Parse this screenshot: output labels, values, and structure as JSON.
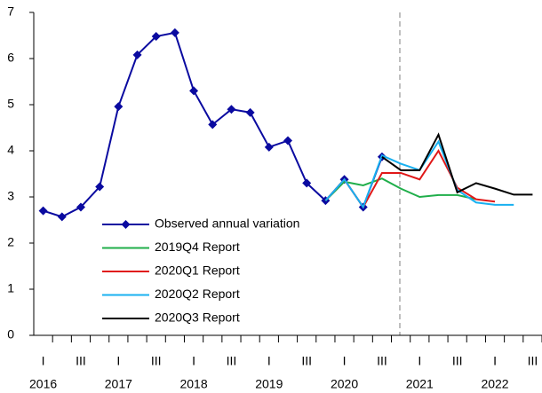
{
  "chart_data": {
    "type": "line",
    "categories": [
      "I",
      null,
      "III",
      null,
      "I",
      null,
      "III",
      null,
      "I",
      null,
      "III",
      null,
      "I",
      null,
      "III",
      null,
      "I",
      null,
      "III",
      null,
      "I",
      null,
      "III",
      null,
      "I",
      null,
      "III"
    ],
    "year_labels": [
      "2016",
      "2017",
      "2018",
      "2019",
      "2020",
      "2021",
      "2022"
    ],
    "series": [
      {
        "name": "Observed annual variation",
        "color": "#0a0aa0",
        "marker": "diamond",
        "values": [
          2.7,
          2.57,
          2.78,
          3.22,
          4.96,
          6.08,
          6.48,
          6.56,
          5.3,
          4.57,
          4.9,
          4.83,
          4.08,
          4.22,
          3.3,
          2.92,
          3.38,
          2.78,
          3.87,
          null,
          null,
          null,
          null,
          null,
          null,
          null,
          null
        ]
      },
      {
        "name": "2019Q4 Report",
        "color": "#1fae4a",
        "values": [
          null,
          null,
          null,
          null,
          null,
          null,
          null,
          null,
          null,
          null,
          null,
          null,
          null,
          null,
          null,
          2.92,
          3.33,
          3.25,
          3.4,
          3.18,
          3.0,
          3.04,
          3.04,
          2.95,
          null,
          null,
          null
        ]
      },
      {
        "name": "2020Q1 Report",
        "color": "#e01818",
        "values": [
          null,
          null,
          null,
          null,
          null,
          null,
          null,
          null,
          null,
          null,
          null,
          null,
          null,
          null,
          null,
          2.92,
          3.38,
          2.78,
          3.52,
          3.52,
          3.38,
          4.0,
          3.2,
          2.95,
          2.9,
          null,
          null
        ]
      },
      {
        "name": "2020Q2 Report",
        "color": "#18b0f0",
        "values": [
          null,
          null,
          null,
          null,
          null,
          null,
          null,
          null,
          null,
          null,
          null,
          null,
          null,
          null,
          null,
          2.92,
          3.38,
          2.78,
          3.9,
          3.72,
          3.58,
          4.2,
          3.15,
          2.88,
          2.83,
          2.83,
          null
        ]
      },
      {
        "name": "2020Q3 Report",
        "color": "#000000",
        "values": [
          null,
          null,
          null,
          null,
          null,
          null,
          null,
          null,
          null,
          null,
          null,
          null,
          null,
          null,
          null,
          null,
          null,
          null,
          3.87,
          3.58,
          3.58,
          4.35,
          3.1,
          3.3,
          3.18,
          3.05,
          3.05
        ]
      }
    ],
    "ylim": [
      0,
      7
    ],
    "yticks": [
      0,
      1,
      2,
      3,
      4,
      5,
      6,
      7
    ],
    "grid": false,
    "legend": "lower left"
  }
}
